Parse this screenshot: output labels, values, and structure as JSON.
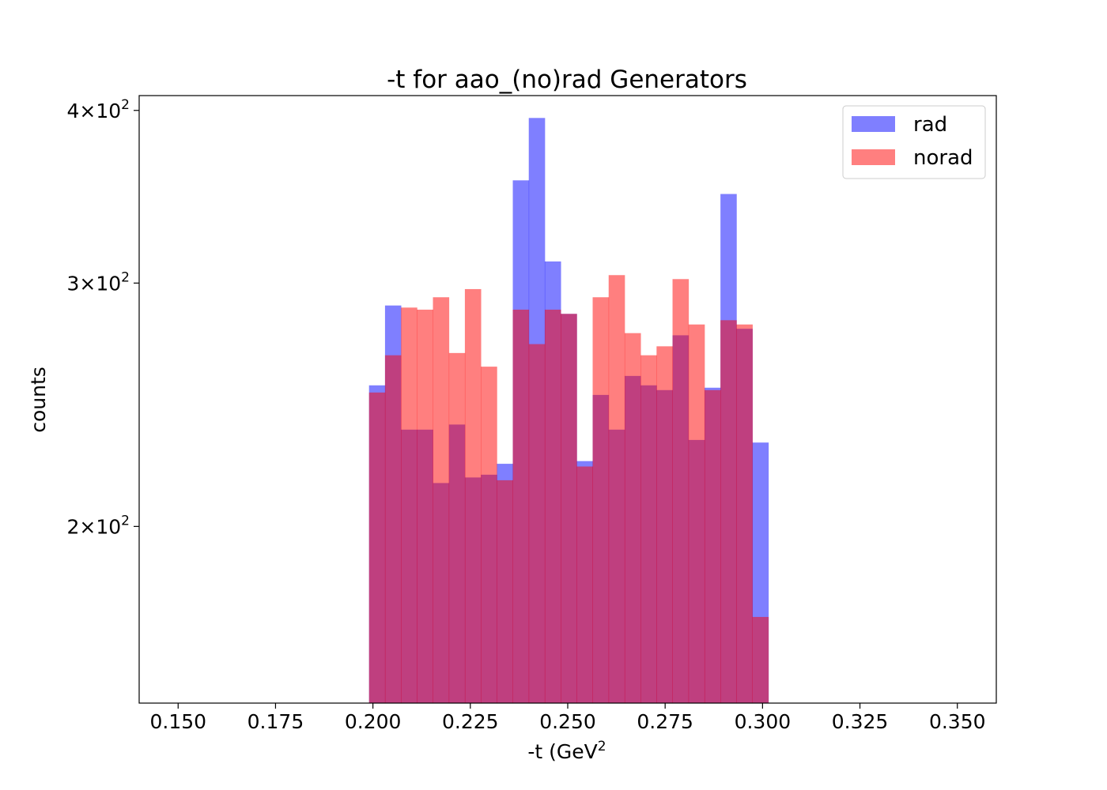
{
  "chart_data": {
    "type": "bar",
    "title": "-t for aao_(no)rad Generators",
    "xlabel": "-t (GeV",
    "xlabel_superscript": "2",
    "ylabel": "counts",
    "yscale": "log",
    "xlim": [
      0.14,
      0.36
    ],
    "ylim": [
      149,
      410
    ],
    "x_ticks": [
      {
        "value": 0.15,
        "label": "0.150"
      },
      {
        "value": 0.175,
        "label": "0.175"
      },
      {
        "value": 0.2,
        "label": "0.200"
      },
      {
        "value": 0.225,
        "label": "0.225"
      },
      {
        "value": 0.25,
        "label": "0.250"
      },
      {
        "value": 0.275,
        "label": "0.275"
      },
      {
        "value": 0.3,
        "label": "0.300"
      },
      {
        "value": 0.325,
        "label": "0.325"
      },
      {
        "value": 0.35,
        "label": "0.350"
      }
    ],
    "y_ticks": [
      {
        "value": 200,
        "mantissa": "2",
        "base": "10",
        "exponent": "2"
      },
      {
        "value": 300,
        "mantissa": "3",
        "base": "10",
        "exponent": "2"
      },
      {
        "value": 400,
        "mantissa": "4",
        "base": "10",
        "exponent": "2"
      }
    ],
    "bin_edges": [
      0.199,
      0.2031,
      0.2072,
      0.2113,
      0.2154,
      0.2195,
      0.2236,
      0.2277,
      0.2318,
      0.2359,
      0.24,
      0.2441,
      0.2482,
      0.2523,
      0.2564,
      0.2605,
      0.2646,
      0.2687,
      0.2728,
      0.2769,
      0.281,
      0.2851,
      0.2892,
      0.2933,
      0.2974,
      0.3015
    ],
    "series": [
      {
        "name": "rad",
        "color": "#0000ff",
        "opacity": 0.5,
        "values": [
          253,
          289,
          235,
          235,
          215,
          237,
          217,
          218,
          222,
          356,
          395,
          311,
          285,
          223,
          249,
          235,
          257,
          253,
          251,
          275,
          231,
          252,
          348,
          278,
          230
        ]
      },
      {
        "name": "norad",
        "color": "#ff0000",
        "opacity": 0.5,
        "values": [
          250,
          266,
          288,
          287,
          293,
          267,
          297,
          261,
          216,
          287,
          271,
          287,
          285,
          221,
          293,
          304,
          276,
          266,
          270,
          302,
          280,
          251,
          282,
          280,
          172
        ]
      }
    ],
    "legend_position": "upper right",
    "overlap_color": "#c03e7d",
    "grid": false
  }
}
